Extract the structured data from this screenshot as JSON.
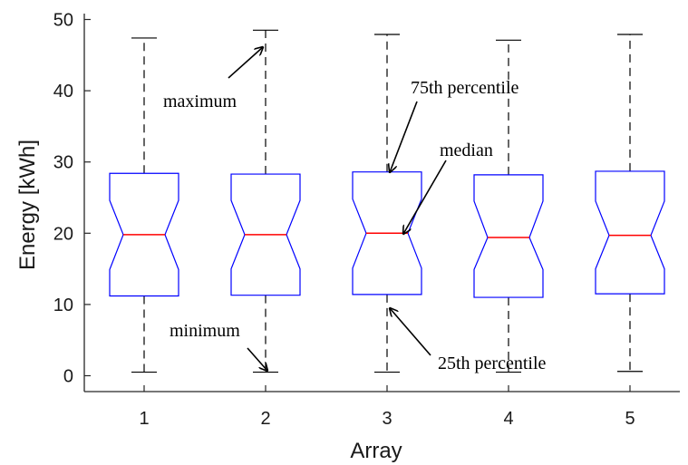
{
  "chart_data": {
    "type": "boxplot",
    "notched": true,
    "title": "",
    "xlabel": "Array",
    "ylabel": "Energy [kWh]",
    "categories": [
      "1",
      "2",
      "3",
      "4",
      "5"
    ],
    "ylim": [
      -2,
      51.5
    ],
    "yticks": [
      0,
      10,
      20,
      30,
      40,
      50
    ],
    "grid": false,
    "boxes": [
      {
        "category": "1",
        "min": 0.5,
        "q1": 11.2,
        "median": 19.8,
        "q3": 28.4,
        "max": 47.4,
        "notch_low": 14.9,
        "notch_high": 24.6
      },
      {
        "category": "2",
        "min": 0.5,
        "q1": 11.3,
        "median": 19.8,
        "q3": 28.3,
        "max": 48.5,
        "notch_low": 15.0,
        "notch_high": 24.6
      },
      {
        "category": "3",
        "min": 0.5,
        "q1": 11.4,
        "median": 20.0,
        "q3": 28.6,
        "max": 47.9,
        "notch_low": 15.1,
        "notch_high": 24.8
      },
      {
        "category": "4",
        "min": 0.5,
        "q1": 11.0,
        "median": 19.4,
        "q3": 28.2,
        "max": 47.1,
        "notch_low": 14.9,
        "notch_high": 24.5
      },
      {
        "category": "5",
        "min": 0.6,
        "q1": 11.5,
        "median": 19.7,
        "q3": 28.7,
        "max": 47.9,
        "notch_low": 15.0,
        "notch_high": 24.5
      }
    ],
    "annotations": [
      {
        "text": "maximum",
        "target_category": "2",
        "target_value": 47
      },
      {
        "text": "75th percentile",
        "target_category": "3",
        "target_value": 28.6
      },
      {
        "text": "median",
        "target_category": "3",
        "target_value": 20.0
      },
      {
        "text": "minimum",
        "target_category": "2",
        "target_value": 0.5
      },
      {
        "text": "25th percentile",
        "target_category": "3",
        "target_value": 11.4
      }
    ],
    "colors": {
      "box": "#0000ff",
      "median": "#ff0000",
      "whisker": "#000000",
      "axis": "#262626",
      "text": "#1a1a1a"
    }
  }
}
